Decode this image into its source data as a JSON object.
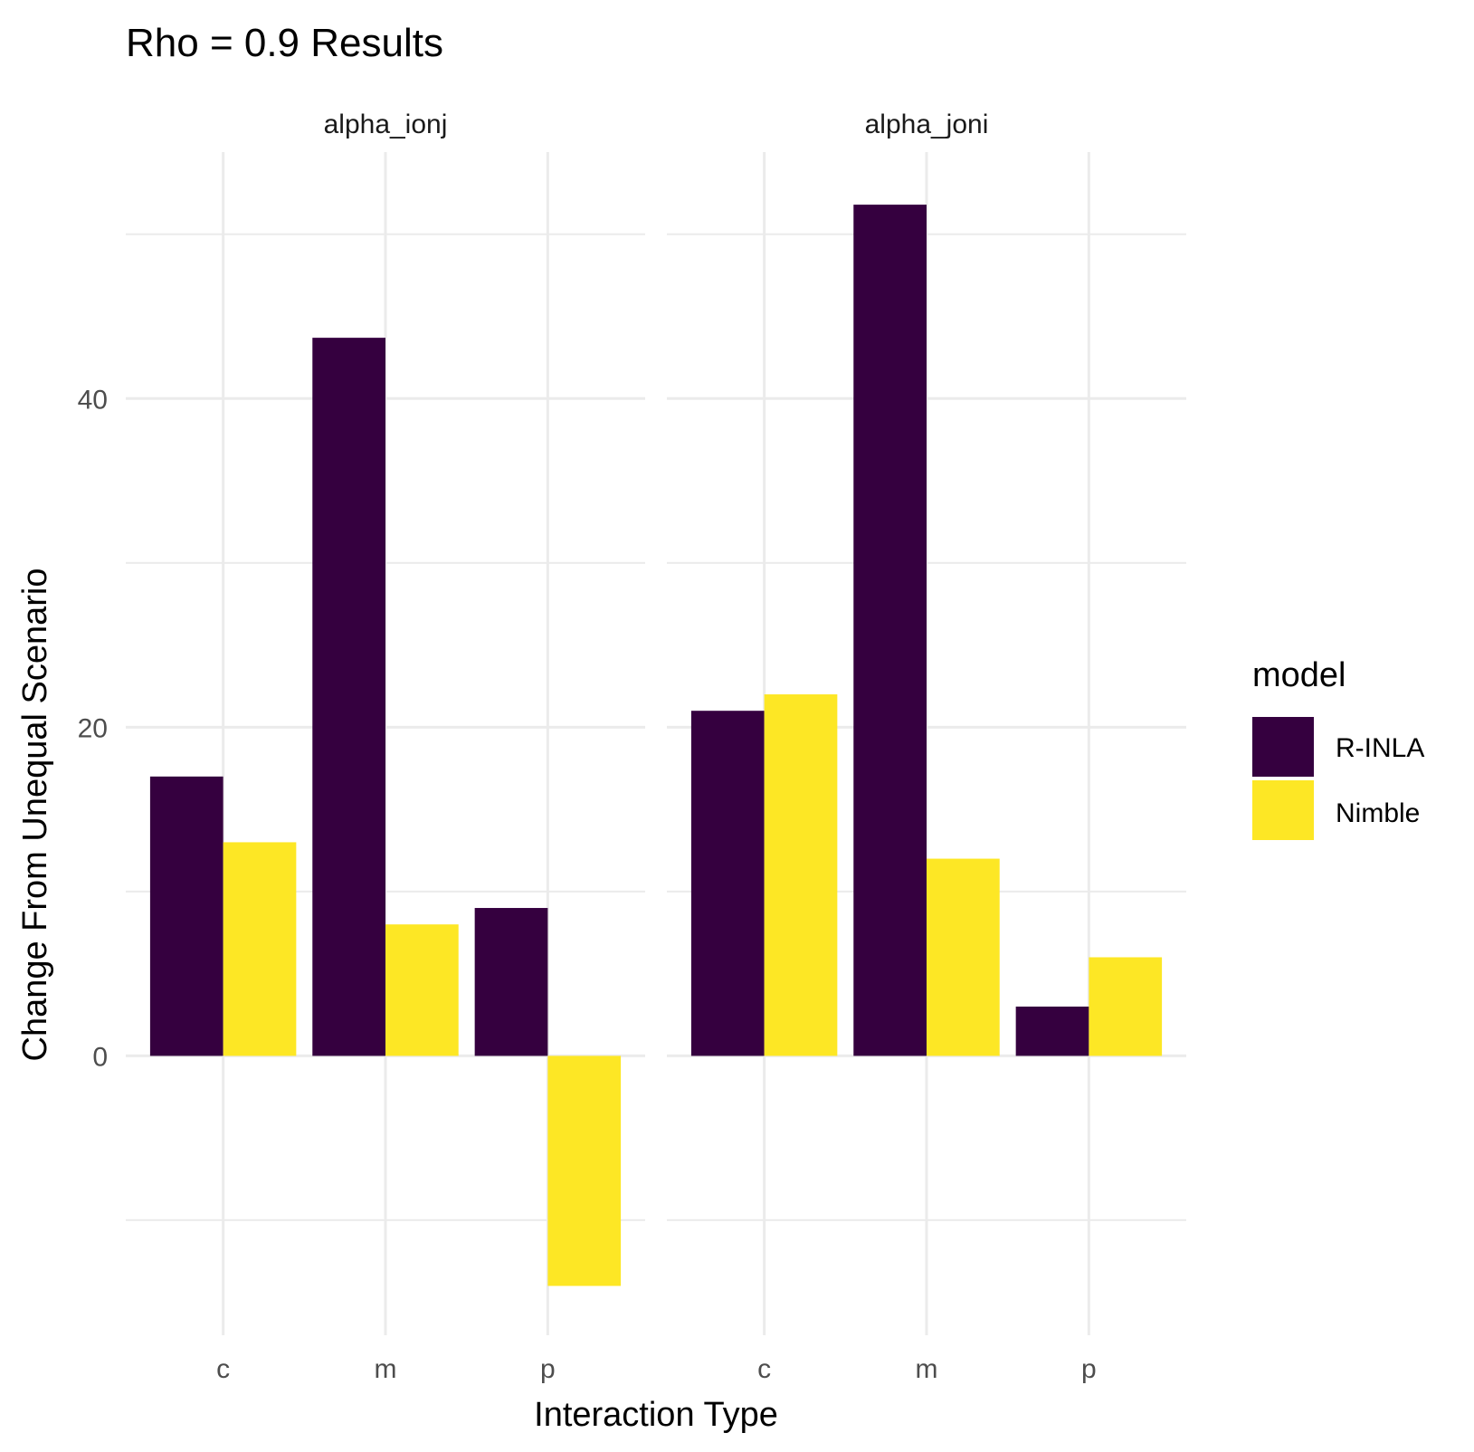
{
  "chart_data": {
    "type": "bar",
    "title": "Rho = 0.9 Results",
    "xlabel": "Interaction Type",
    "ylabel": "Change From Unequal Scenario",
    "categories": [
      "c",
      "m",
      "p"
    ],
    "ylim": [
      -17,
      55
    ],
    "yticks": [
      0,
      20,
      40
    ],
    "grid": true,
    "legend": {
      "title": "model",
      "position": "right",
      "entries": [
        {
          "label": "R-INLA",
          "color": "#35003f"
        },
        {
          "label": "Nimble",
          "color": "#fde725"
        }
      ]
    },
    "facets": [
      {
        "label": "alpha_ionj",
        "series": [
          {
            "name": "R-INLA",
            "color": "#35003f",
            "values": [
              17,
              43.7,
              9
            ]
          },
          {
            "name": "Nimble",
            "color": "#fde725",
            "values": [
              13,
              8,
              -14
            ]
          }
        ]
      },
      {
        "label": "alpha_joni",
        "series": [
          {
            "name": "R-INLA",
            "color": "#35003f",
            "values": [
              21,
              51.8,
              3
            ]
          },
          {
            "name": "Nimble",
            "color": "#fde725",
            "values": [
              22,
              12,
              6
            ]
          }
        ]
      }
    ]
  }
}
